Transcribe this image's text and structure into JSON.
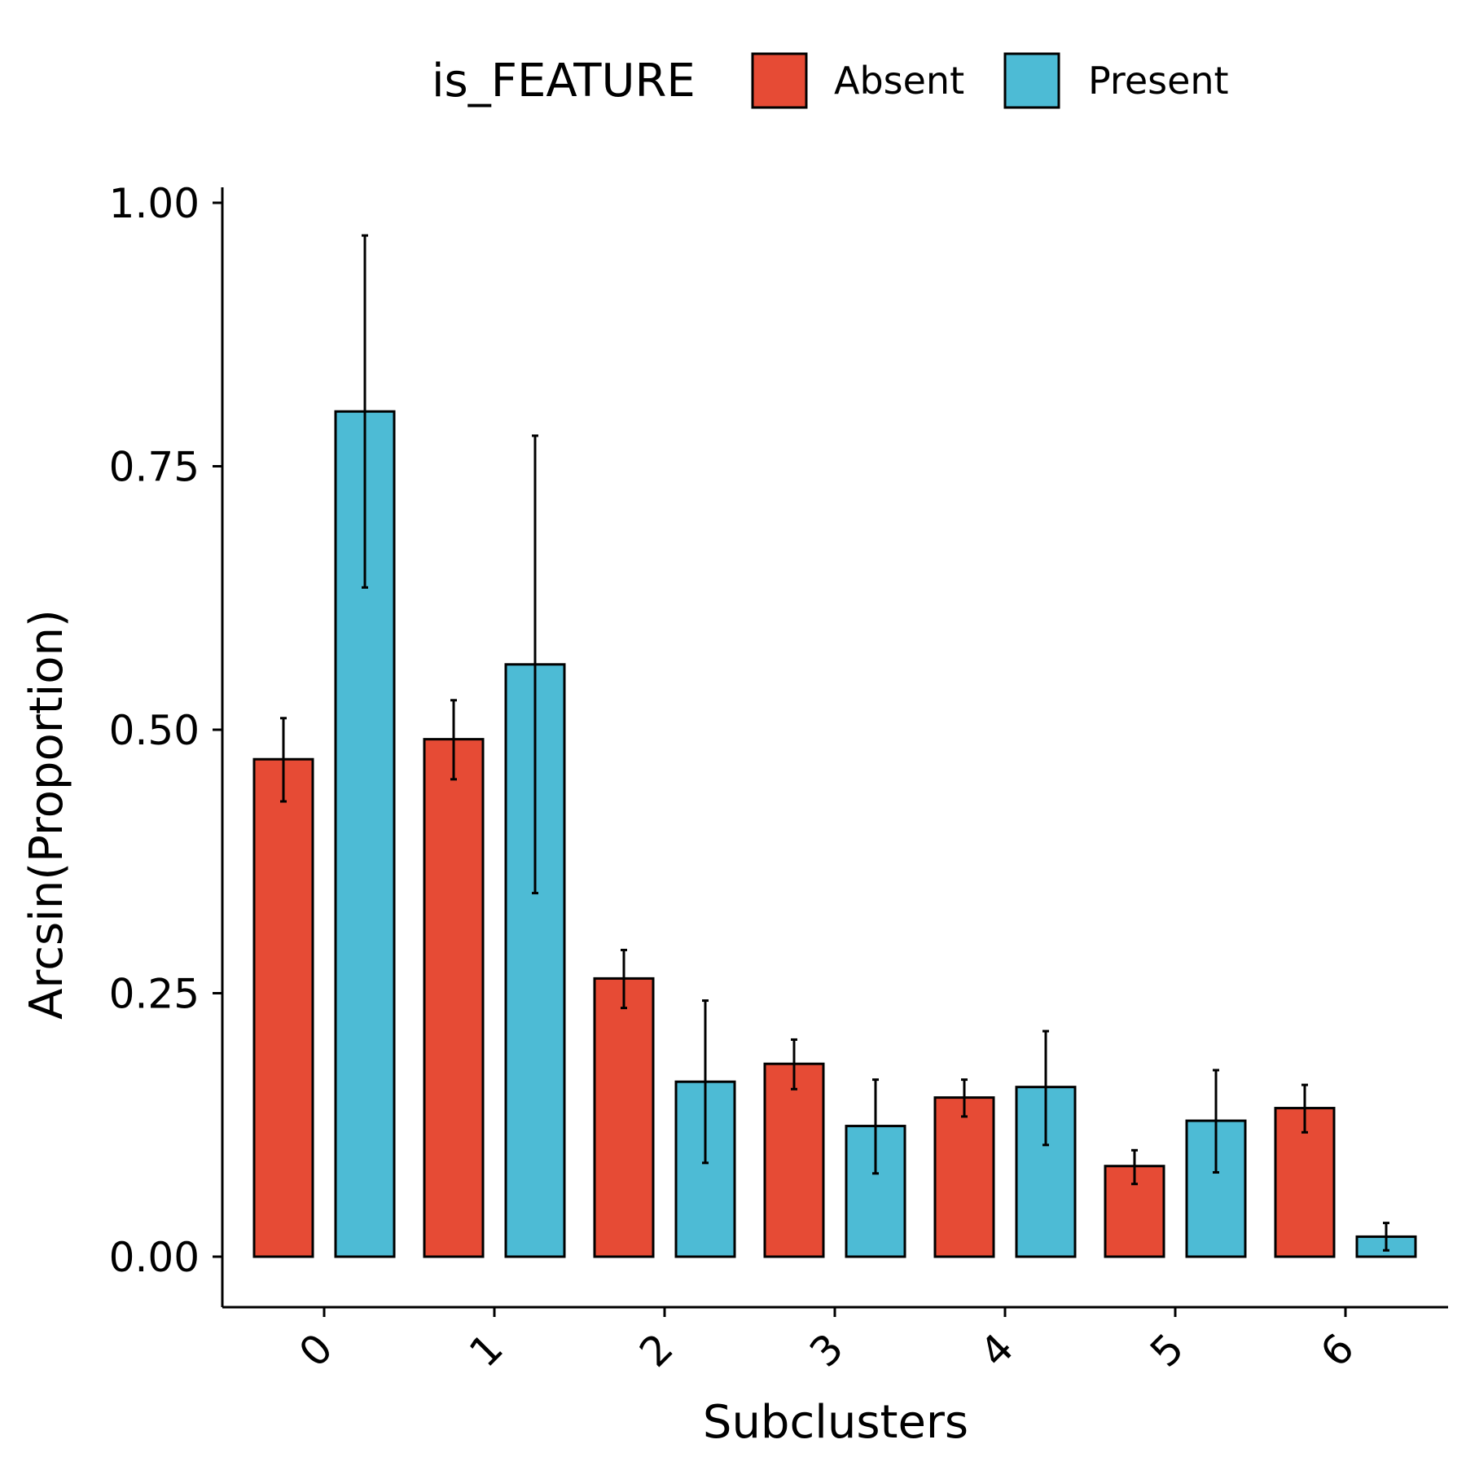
{
  "chart_data": {
    "type": "bar",
    "title": "",
    "xlabel": "Subclusters",
    "ylabel": "Arcsin(Proportion)",
    "ylim": [
      -0.1,
      1.03
    ],
    "yticks": [
      "0.00",
      "0.25",
      "0.50",
      "0.75",
      "1.00"
    ],
    "categories": [
      "0",
      "1",
      "2",
      "3",
      "4",
      "5",
      "6"
    ],
    "legend": {
      "title": "is_FEATURE",
      "position": "top"
    },
    "series": [
      {
        "name": "Absent",
        "color": "#E64B35",
        "values": [
          0.472,
          0.491,
          0.264,
          0.183,
          0.151,
          0.086,
          0.141
        ],
        "err_low": [
          0.432,
          0.453,
          0.236,
          0.159,
          0.133,
          0.069,
          0.118
        ],
        "err_high": [
          0.511,
          0.528,
          0.291,
          0.206,
          0.168,
          0.101,
          0.163
        ]
      },
      {
        "name": "Present",
        "color": "#4DBBD5",
        "values": [
          0.802,
          0.562,
          0.166,
          0.124,
          0.161,
          0.129,
          0.019
        ],
        "err_low": [
          0.635,
          0.345,
          0.089,
          0.079,
          0.106,
          0.08,
          0.006
        ],
        "err_high": [
          0.969,
          0.779,
          0.243,
          0.168,
          0.214,
          0.177,
          0.032
        ]
      }
    ]
  }
}
